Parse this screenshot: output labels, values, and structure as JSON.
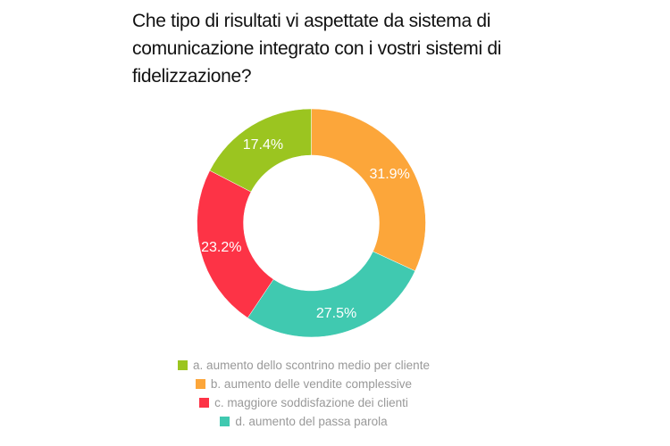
{
  "chart_data": {
    "type": "pie",
    "donut": true,
    "title": "Che tipo di risultati vi aspettate da sistema di comunicazione integrato con i vostri sistemi di fidelizzazione?",
    "categories": [
      "a. aumento dello scontrino medio per cliente",
      "b. aumento delle vendite complessive",
      "c. maggiore soddisfazione dei clienti",
      "d. aumento del passa parola"
    ],
    "values": [
      17.4,
      31.9,
      23.2,
      27.5
    ],
    "labels": [
      "17.4%",
      "31.9%",
      "23.2%",
      "27.5%"
    ],
    "colors": [
      "#9bc520",
      "#fca63a",
      "#fd3346",
      "#40c9b0"
    ],
    "legend_position": "bottom"
  }
}
